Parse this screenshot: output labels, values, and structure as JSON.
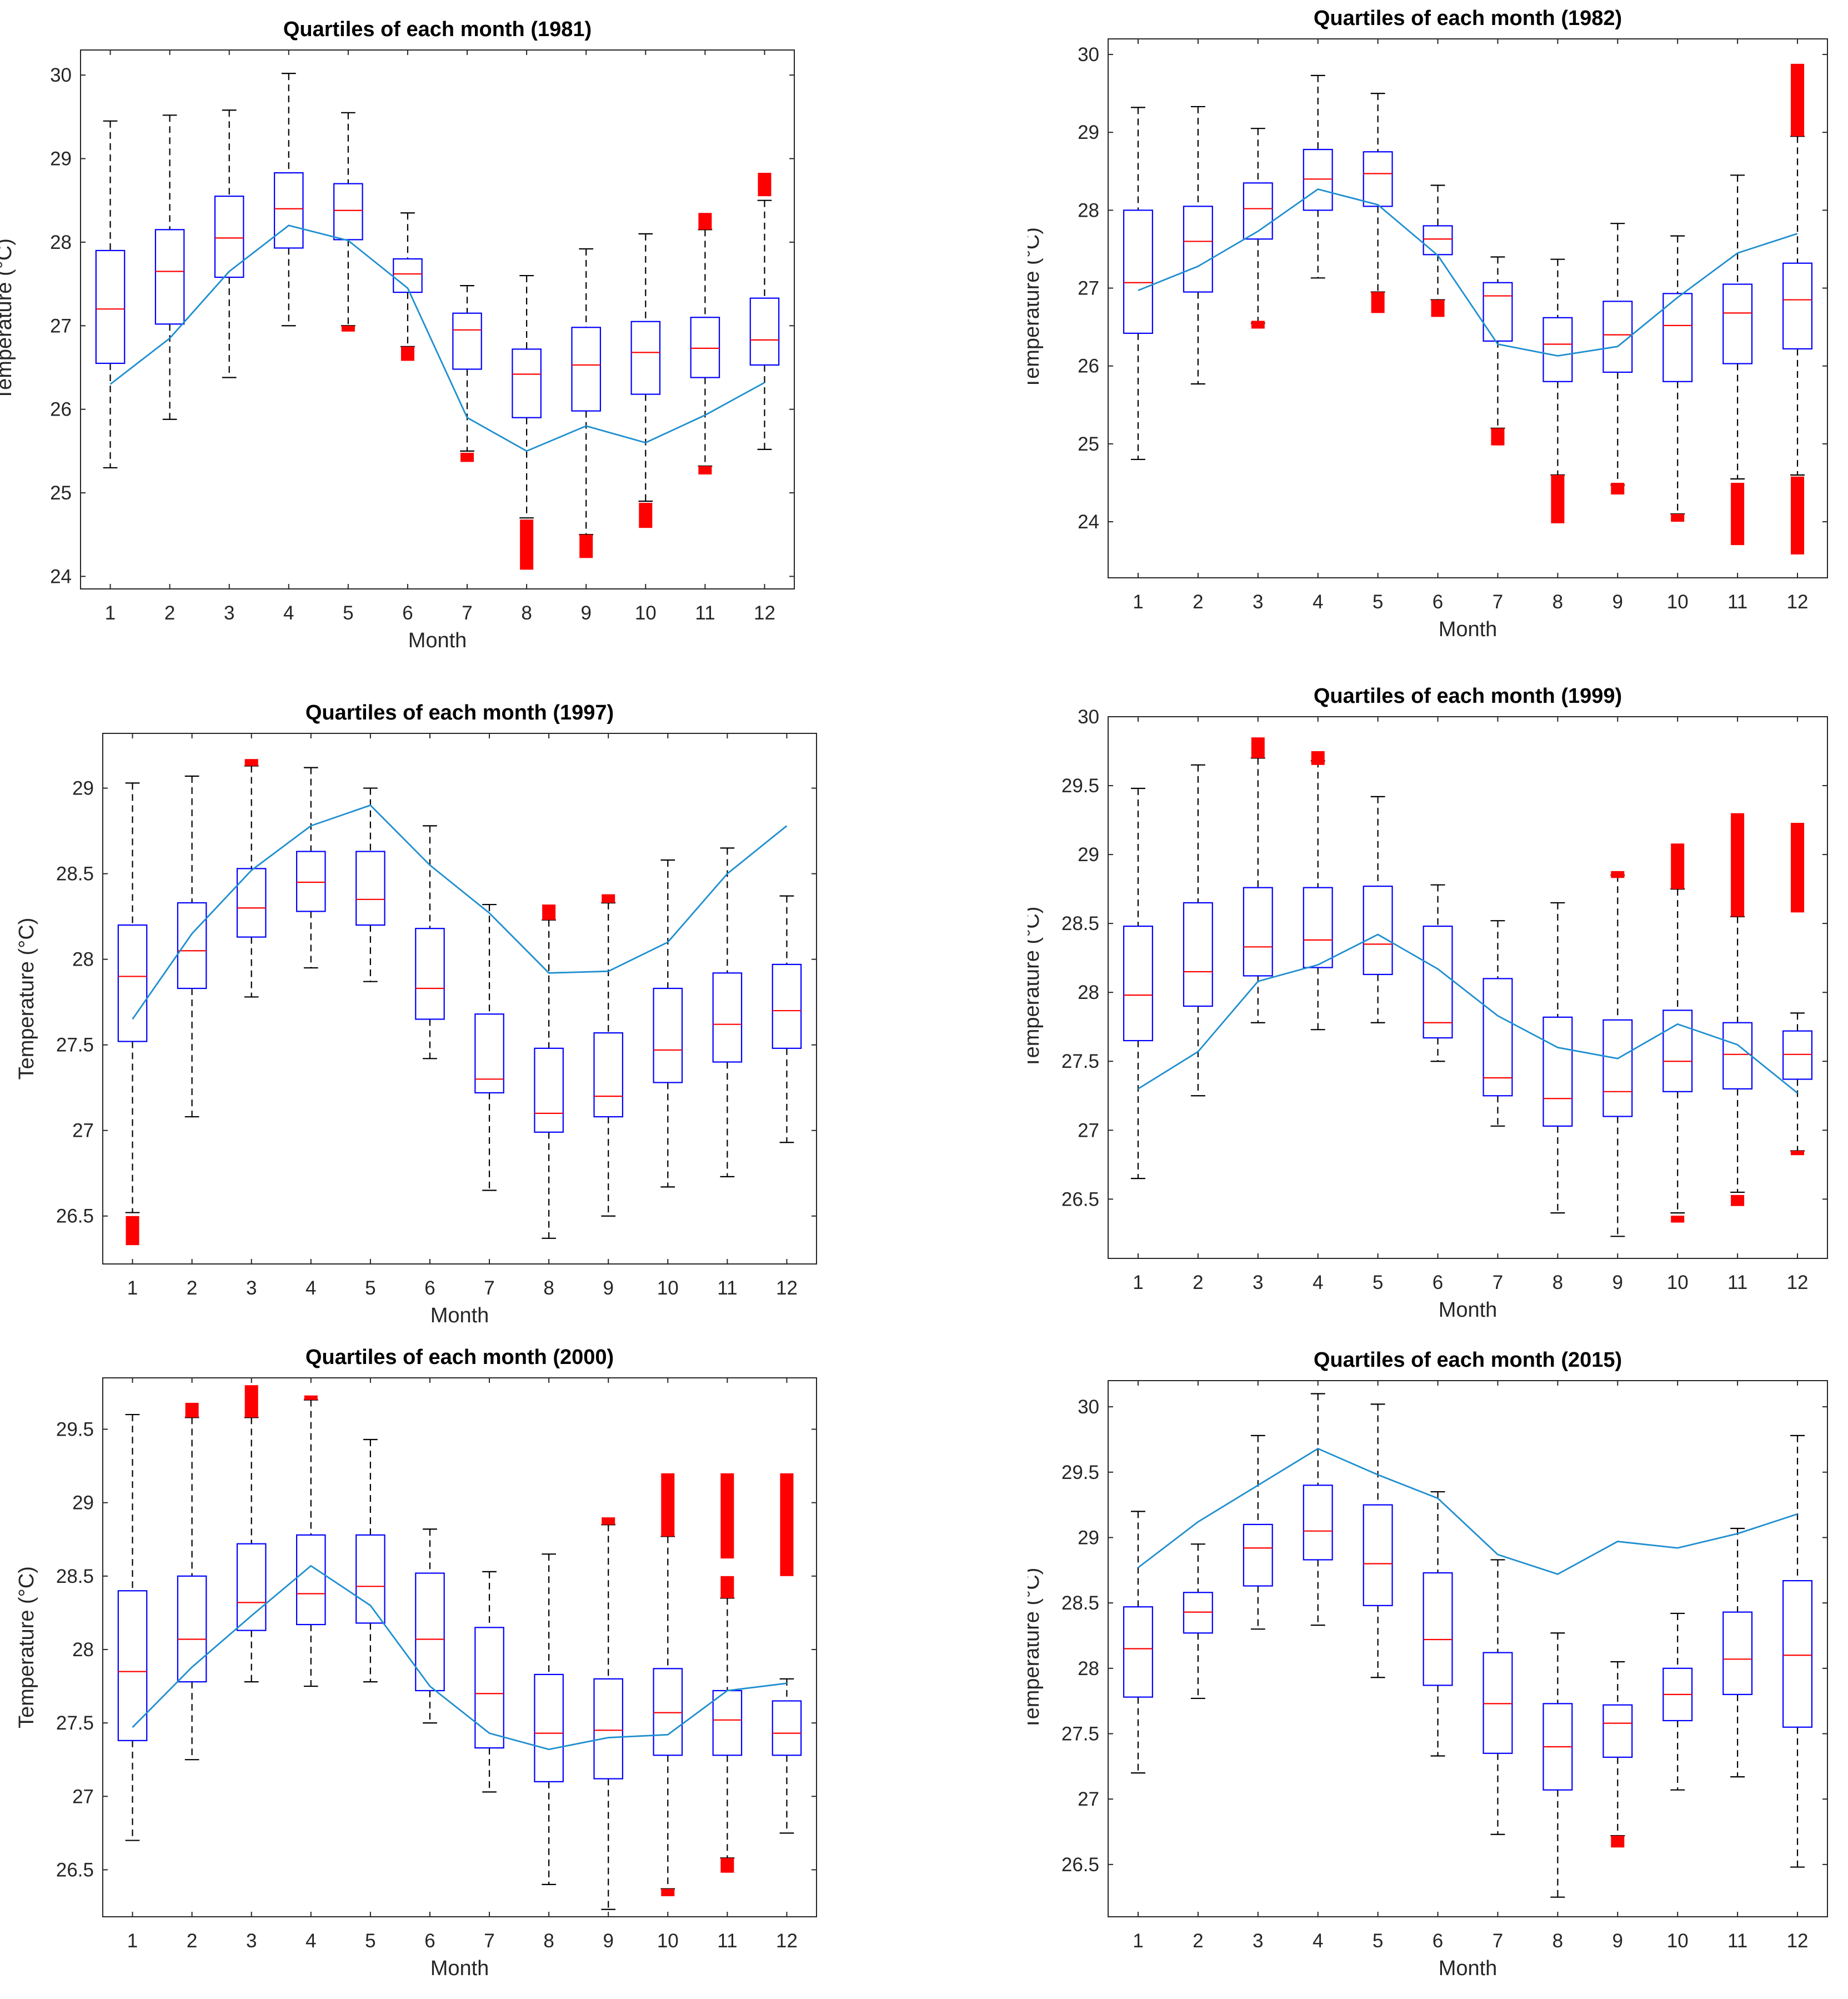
{
  "colors": {
    "box": "#0000ff",
    "median": "#ff0000",
    "whisker": "#000000",
    "outlier": "#ff0000",
    "line": "#1f8fd0",
    "axis": "#262626"
  },
  "chart_data": [
    {
      "type": "box",
      "title": "Quartiles of each month (1981)",
      "xlabel": "Month",
      "ylabel": "Temperature (°C)",
      "categories": [
        "1",
        "2",
        "3",
        "4",
        "5",
        "6",
        "7",
        "8",
        "9",
        "10",
        "11",
        "12"
      ],
      "ylim": [
        23.85,
        30.3
      ],
      "yticks": [
        24,
        25,
        26,
        27,
        28,
        29,
        30
      ],
      "ytick_labels": [
        "24",
        "25",
        "26",
        "27",
        "28",
        "29",
        "30"
      ],
      "boxes": [
        {
          "low": 25.3,
          "q1": 26.55,
          "median": 27.2,
          "q3": 27.9,
          "high": 29.45
        },
        {
          "low": 25.88,
          "q1": 27.02,
          "median": 27.65,
          "q3": 28.15,
          "high": 29.52
        },
        {
          "low": 26.38,
          "q1": 27.58,
          "median": 28.05,
          "q3": 28.55,
          "high": 29.58
        },
        {
          "low": 27.0,
          "q1": 27.93,
          "median": 28.4,
          "q3": 28.83,
          "high": 30.02
        },
        {
          "low": 27.0,
          "q1": 28.03,
          "median": 28.38,
          "q3": 28.7,
          "high": 29.55
        },
        {
          "low": 26.75,
          "q1": 27.4,
          "median": 27.62,
          "q3": 27.8,
          "high": 28.35
        },
        {
          "low": 25.5,
          "q1": 26.48,
          "median": 26.95,
          "q3": 27.15,
          "high": 27.48
        },
        {
          "low": 24.7,
          "q1": 25.9,
          "median": 26.42,
          "q3": 26.72,
          "high": 27.6
        },
        {
          "low": 24.5,
          "q1": 25.98,
          "median": 26.53,
          "q3": 26.98,
          "high": 27.92
        },
        {
          "low": 24.9,
          "q1": 26.18,
          "median": 26.68,
          "q3": 27.05,
          "high": 28.1
        },
        {
          "low": 25.32,
          "q1": 26.38,
          "median": 26.73,
          "q3": 27.1,
          "high": 28.15
        },
        {
          "low": 25.52,
          "q1": 26.53,
          "median": 26.83,
          "q3": 27.33,
          "high": 28.5
        }
      ],
      "outliers": [
        {
          "month": 5,
          "from": 26.93,
          "to": 27.0
        },
        {
          "month": 6,
          "from": 26.58,
          "to": 26.75
        },
        {
          "month": 7,
          "from": 25.37,
          "to": 25.48
        },
        {
          "month": 8,
          "from": 24.08,
          "to": 24.68
        },
        {
          "month": 9,
          "from": 24.22,
          "to": 24.5
        },
        {
          "month": 10,
          "from": 24.58,
          "to": 24.88
        },
        {
          "month": 11,
          "from": 25.22,
          "to": 25.32
        },
        {
          "month": 11,
          "from": 28.15,
          "to": 28.35
        },
        {
          "month": 12,
          "from": 28.55,
          "to": 28.83
        }
      ],
      "line": [
        26.3,
        26.85,
        27.65,
        28.2,
        28.02,
        27.45,
        25.9,
        25.5,
        25.8,
        25.6,
        25.93,
        26.32
      ]
    },
    {
      "type": "box",
      "title": "Quartiles of each month (1982)",
      "xlabel": "Month",
      "ylabel": "Temperature (°C)",
      "categories": [
        "1",
        "2",
        "3",
        "4",
        "5",
        "6",
        "7",
        "8",
        "9",
        "10",
        "11",
        "12"
      ],
      "ylim": [
        23.28,
        30.2
      ],
      "yticks": [
        24,
        25,
        26,
        27,
        28,
        29,
        30
      ],
      "ytick_labels": [
        "24",
        "25",
        "26",
        "27",
        "28",
        "29",
        "30"
      ],
      "boxes": [
        {
          "low": 24.8,
          "q1": 26.42,
          "median": 27.07,
          "q3": 28.0,
          "high": 29.32
        },
        {
          "low": 25.77,
          "q1": 26.95,
          "median": 27.6,
          "q3": 28.05,
          "high": 29.33
        },
        {
          "low": 26.55,
          "q1": 27.63,
          "median": 28.02,
          "q3": 28.35,
          "high": 29.05
        },
        {
          "low": 27.13,
          "q1": 28.0,
          "median": 28.4,
          "q3": 28.78,
          "high": 29.73
        },
        {
          "low": 26.95,
          "q1": 28.05,
          "median": 28.47,
          "q3": 28.75,
          "high": 29.5
        },
        {
          "low": 26.85,
          "q1": 27.43,
          "median": 27.63,
          "q3": 27.8,
          "high": 28.32
        },
        {
          "low": 25.2,
          "q1": 26.32,
          "median": 26.9,
          "q3": 27.07,
          "high": 27.4
        },
        {
          "low": 24.6,
          "q1": 25.8,
          "median": 26.28,
          "q3": 26.62,
          "high": 27.37
        },
        {
          "low": 24.47,
          "q1": 25.92,
          "median": 26.4,
          "q3": 26.83,
          "high": 27.83
        },
        {
          "low": 24.1,
          "q1": 25.8,
          "median": 26.52,
          "q3": 26.93,
          "high": 27.67
        },
        {
          "low": 24.55,
          "q1": 26.03,
          "median": 26.68,
          "q3": 27.05,
          "high": 28.45
        },
        {
          "low": 24.6,
          "q1": 26.22,
          "median": 26.85,
          "q3": 27.32,
          "high": 28.95
        }
      ],
      "outliers": [
        {
          "month": 3,
          "from": 26.48,
          "to": 26.58
        },
        {
          "month": 5,
          "from": 26.68,
          "to": 26.95
        },
        {
          "month": 6,
          "from": 26.63,
          "to": 26.85
        },
        {
          "month": 7,
          "from": 24.98,
          "to": 25.2
        },
        {
          "month": 8,
          "from": 23.98,
          "to": 24.6
        },
        {
          "month": 9,
          "from": 24.35,
          "to": 24.5
        },
        {
          "month": 10,
          "from": 24.0,
          "to": 24.1
        },
        {
          "month": 11,
          "from": 23.7,
          "to": 24.5
        },
        {
          "month": 12,
          "from": 23.58,
          "to": 24.58
        },
        {
          "month": 12,
          "from": 28.95,
          "to": 29.88
        }
      ],
      "line": [
        26.97,
        27.28,
        27.73,
        28.27,
        28.07,
        27.42,
        26.28,
        26.13,
        26.25,
        26.88,
        27.45,
        27.7
      ]
    },
    {
      "type": "box",
      "title": "Quartiles of each month (1997)",
      "xlabel": "Month",
      "ylabel": "Temperature (°C)",
      "categories": [
        "1",
        "2",
        "3",
        "4",
        "5",
        "6",
        "7",
        "8",
        "9",
        "10",
        "11",
        "12"
      ],
      "ylim": [
        26.22,
        29.32
      ],
      "yticks": [
        26.5,
        27,
        27.5,
        28,
        28.5,
        29
      ],
      "ytick_labels": [
        "26.5",
        "27",
        "27.5",
        "28",
        "28.5",
        "29"
      ],
      "boxes": [
        {
          "low": 26.52,
          "q1": 27.52,
          "median": 27.9,
          "q3": 28.2,
          "high": 29.03
        },
        {
          "low": 27.08,
          "q1": 27.83,
          "median": 28.05,
          "q3": 28.33,
          "high": 29.07
        },
        {
          "low": 27.78,
          "q1": 28.13,
          "median": 28.3,
          "q3": 28.53,
          "high": 29.13
        },
        {
          "low": 27.95,
          "q1": 28.28,
          "median": 28.45,
          "q3": 28.63,
          "high": 29.12
        },
        {
          "low": 27.87,
          "q1": 28.2,
          "median": 28.35,
          "q3": 28.63,
          "high": 29.0
        },
        {
          "low": 27.42,
          "q1": 27.65,
          "median": 27.83,
          "q3": 28.18,
          "high": 28.78
        },
        {
          "low": 26.65,
          "q1": 27.22,
          "median": 27.3,
          "q3": 27.68,
          "high": 28.32
        },
        {
          "low": 26.37,
          "q1": 26.99,
          "median": 27.1,
          "q3": 27.48,
          "high": 28.23
        },
        {
          "low": 26.5,
          "q1": 27.08,
          "median": 27.2,
          "q3": 27.57,
          "high": 28.33
        },
        {
          "low": 26.67,
          "q1": 27.28,
          "median": 27.47,
          "q3": 27.83,
          "high": 28.58
        },
        {
          "low": 26.73,
          "q1": 27.4,
          "median": 27.62,
          "q3": 27.92,
          "high": 28.65
        },
        {
          "low": 26.93,
          "q1": 27.48,
          "median": 27.7,
          "q3": 27.97,
          "high": 28.37
        }
      ],
      "outliers": [
        {
          "month": 1,
          "from": 26.33,
          "to": 26.5
        },
        {
          "month": 3,
          "from": 29.13,
          "to": 29.17
        },
        {
          "month": 8,
          "from": 28.23,
          "to": 28.32
        },
        {
          "month": 9,
          "from": 28.33,
          "to": 28.38
        }
      ],
      "line": [
        27.65,
        28.15,
        28.52,
        28.78,
        28.9,
        28.55,
        28.27,
        27.92,
        27.93,
        28.1,
        28.5,
        28.78
      ]
    },
    {
      "type": "box",
      "title": "Quartiles of each month (1999)",
      "xlabel": "Month",
      "ylabel": "Temperature (°C)",
      "categories": [
        "1",
        "2",
        "3",
        "4",
        "5",
        "6",
        "7",
        "8",
        "9",
        "10",
        "11",
        "12"
      ],
      "ylim": [
        26.07,
        30.0
      ],
      "yticks": [
        26.5,
        27,
        27.5,
        28,
        28.5,
        29,
        29.5,
        30
      ],
      "ytick_labels": [
        "26.5",
        "27",
        "27.5",
        "28",
        "28.5",
        "29",
        "29.5",
        "30"
      ],
      "boxes": [
        {
          "low": 26.65,
          "q1": 27.65,
          "median": 27.98,
          "q3": 28.48,
          "high": 29.48
        },
        {
          "low": 27.25,
          "q1": 27.9,
          "median": 28.15,
          "q3": 28.65,
          "high": 29.65
        },
        {
          "low": 27.78,
          "q1": 28.12,
          "median": 28.33,
          "q3": 28.76,
          "high": 29.7
        },
        {
          "low": 27.73,
          "q1": 28.18,
          "median": 28.38,
          "q3": 28.76,
          "high": 29.68
        },
        {
          "low": 27.78,
          "q1": 28.13,
          "median": 28.35,
          "q3": 28.77,
          "high": 29.42
        },
        {
          "low": 27.5,
          "q1": 27.67,
          "median": 27.78,
          "q3": 28.48,
          "high": 28.78
        },
        {
          "low": 27.03,
          "q1": 27.25,
          "median": 27.38,
          "q3": 28.1,
          "high": 28.52
        },
        {
          "low": 26.4,
          "q1": 27.03,
          "median": 27.23,
          "q3": 27.82,
          "high": 28.65
        },
        {
          "low": 26.23,
          "q1": 27.1,
          "median": 27.28,
          "q3": 27.8,
          "high": 28.85
        },
        {
          "low": 26.4,
          "q1": 27.28,
          "median": 27.5,
          "q3": 27.87,
          "high": 28.75
        },
        {
          "low": 26.55,
          "q1": 27.3,
          "median": 27.55,
          "q3": 27.78,
          "high": 28.55
        },
        {
          "low": 26.85,
          "q1": 27.37,
          "median": 27.55,
          "q3": 27.72,
          "high": 27.85
        }
      ],
      "outliers": [
        {
          "month": 3,
          "from": 29.7,
          "to": 29.85
        },
        {
          "month": 4,
          "from": 29.65,
          "to": 29.75
        },
        {
          "month": 9,
          "from": 28.83,
          "to": 28.88
        },
        {
          "month": 10,
          "from": 26.33,
          "to": 26.38
        },
        {
          "month": 10,
          "from": 28.75,
          "to": 29.08
        },
        {
          "month": 11,
          "from": 26.45,
          "to": 26.53
        },
        {
          "month": 11,
          "from": 28.55,
          "to": 29.3
        },
        {
          "month": 12,
          "from": 26.82,
          "to": 26.85
        },
        {
          "month": 12,
          "from": 28.58,
          "to": 29.23
        }
      ],
      "line": [
        27.3,
        27.57,
        28.08,
        28.2,
        28.42,
        28.17,
        27.83,
        27.6,
        27.52,
        27.77,
        27.62,
        27.27
      ]
    },
    {
      "type": "box",
      "title": "Quartiles of each month (2000)",
      "xlabel": "Month",
      "ylabel": "Temperature (°C)",
      "categories": [
        "1",
        "2",
        "3",
        "4",
        "5",
        "6",
        "7",
        "8",
        "9",
        "10",
        "11",
        "12"
      ],
      "ylim": [
        26.18,
        29.85
      ],
      "yticks": [
        26.5,
        27,
        27.5,
        28,
        28.5,
        29,
        29.5
      ],
      "ytick_labels": [
        "26.5",
        "27",
        "27.5",
        "28",
        "28.5",
        "29",
        "29.5"
      ],
      "boxes": [
        {
          "low": 26.7,
          "q1": 27.38,
          "median": 27.85,
          "q3": 28.4,
          "high": 29.6
        },
        {
          "low": 27.25,
          "q1": 27.78,
          "median": 28.07,
          "q3": 28.5,
          "high": 29.58
        },
        {
          "low": 27.78,
          "q1": 28.13,
          "median": 28.32,
          "q3": 28.72,
          "high": 29.58
        },
        {
          "low": 27.75,
          "q1": 28.17,
          "median": 28.38,
          "q3": 28.78,
          "high": 29.7
        },
        {
          "low": 27.78,
          "q1": 28.18,
          "median": 28.43,
          "q3": 28.78,
          "high": 29.43
        },
        {
          "low": 27.5,
          "q1": 27.72,
          "median": 28.07,
          "q3": 28.52,
          "high": 28.82
        },
        {
          "low": 27.03,
          "q1": 27.33,
          "median": 27.7,
          "q3": 28.15,
          "high": 28.53
        },
        {
          "low": 26.4,
          "q1": 27.1,
          "median": 27.43,
          "q3": 27.83,
          "high": 28.65
        },
        {
          "low": 26.23,
          "q1": 27.12,
          "median": 27.45,
          "q3": 27.8,
          "high": 28.85
        },
        {
          "low": 26.37,
          "q1": 27.28,
          "median": 27.57,
          "q3": 27.87,
          "high": 28.77
        },
        {
          "low": 26.58,
          "q1": 27.28,
          "median": 27.52,
          "q3": 27.72,
          "high": 28.35
        },
        {
          "low": 26.75,
          "q1": 27.28,
          "median": 27.43,
          "q3": 27.65,
          "high": 27.8
        }
      ],
      "outliers": [
        {
          "month": 2,
          "from": 29.58,
          "to": 29.68
        },
        {
          "month": 3,
          "from": 29.58,
          "to": 29.8
        },
        {
          "month": 4,
          "from": 29.7,
          "to": 29.73
        },
        {
          "month": 9,
          "from": 28.85,
          "to": 28.9
        },
        {
          "month": 10,
          "from": 26.32,
          "to": 26.37
        },
        {
          "month": 10,
          "from": 28.77,
          "to": 29.2
        },
        {
          "month": 11,
          "from": 26.48,
          "to": 26.58
        },
        {
          "month": 11,
          "from": 28.35,
          "to": 28.5
        },
        {
          "month": 11,
          "from": 28.62,
          "to": 29.2
        },
        {
          "month": 12,
          "from": 28.5,
          "to": 29.2
        }
      ],
      "line": [
        27.47,
        27.88,
        28.23,
        28.57,
        28.3,
        27.75,
        27.43,
        27.32,
        27.4,
        27.42,
        27.72,
        27.77
      ]
    },
    {
      "type": "box",
      "title": "Quartiles of each month (2015)",
      "xlabel": "Month",
      "ylabel": "Temperature (°C)",
      "categories": [
        "1",
        "2",
        "3",
        "4",
        "5",
        "6",
        "7",
        "8",
        "9",
        "10",
        "11",
        "12"
      ],
      "ylim": [
        26.1,
        30.2
      ],
      "yticks": [
        26.5,
        27,
        27.5,
        28,
        28.5,
        29,
        29.5,
        30
      ],
      "ytick_labels": [
        "26.5",
        "27",
        "27.5",
        "28",
        "28.5",
        "29",
        "29.5",
        "30"
      ],
      "boxes": [
        {
          "low": 27.2,
          "q1": 27.78,
          "median": 28.15,
          "q3": 28.47,
          "high": 29.2
        },
        {
          "low": 27.77,
          "q1": 28.27,
          "median": 28.43,
          "q3": 28.58,
          "high": 28.95
        },
        {
          "low": 28.3,
          "q1": 28.63,
          "median": 28.92,
          "q3": 29.1,
          "high": 29.78
        },
        {
          "low": 28.33,
          "q1": 28.83,
          "median": 29.05,
          "q3": 29.4,
          "high": 30.1
        },
        {
          "low": 27.93,
          "q1": 28.48,
          "median": 28.8,
          "q3": 29.25,
          "high": 30.02
        },
        {
          "low": 27.33,
          "q1": 27.87,
          "median": 28.22,
          "q3": 28.73,
          "high": 29.35
        },
        {
          "low": 26.73,
          "q1": 27.35,
          "median": 27.73,
          "q3": 28.12,
          "high": 28.83
        },
        {
          "low": 26.25,
          "q1": 27.07,
          "median": 27.4,
          "q3": 27.73,
          "high": 28.27
        },
        {
          "low": 26.72,
          "q1": 27.32,
          "median": 27.58,
          "q3": 27.72,
          "high": 28.05
        },
        {
          "low": 27.07,
          "q1": 27.6,
          "median": 27.8,
          "q3": 28.0,
          "high": 28.42
        },
        {
          "low": 27.17,
          "q1": 27.8,
          "median": 28.07,
          "q3": 28.43,
          "high": 29.07
        },
        {
          "low": 26.48,
          "q1": 27.55,
          "median": 28.1,
          "q3": 28.67,
          "high": 29.78
        }
      ],
      "outliers": [
        {
          "month": 9,
          "from": 26.63,
          "to": 26.72
        }
      ],
      "line": [
        28.77,
        29.12,
        29.4,
        29.68,
        29.48,
        29.3,
        28.87,
        28.72,
        28.97,
        28.92,
        29.03,
        29.18
      ]
    }
  ]
}
